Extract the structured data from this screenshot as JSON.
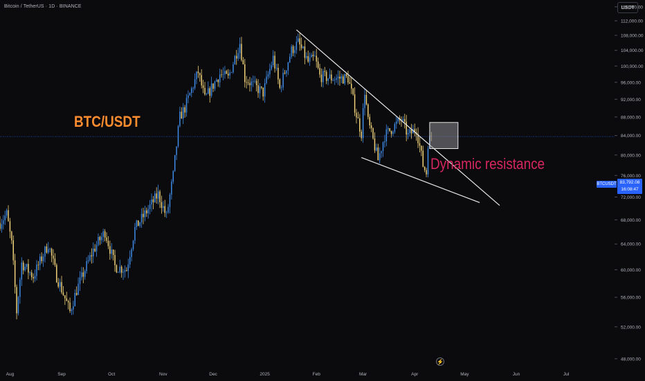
{
  "header": {
    "symbol_title": "Bitcoin / TetherUS · 1D · BINANCE",
    "currency": "USDT"
  },
  "colors": {
    "background": "#0b0b0d",
    "candle_up": "#3f8be8",
    "candle_down": "#f0d27a",
    "trendline": "#e8e8e8",
    "last_price_line": "#2962ff",
    "annotation_btc": "#ff8c2e",
    "annotation_resistance": "#d6265f"
  },
  "price_tag": {
    "symbol": "BTCUSDT",
    "price": "83,792.08",
    "countdown": "16:08:47"
  },
  "annotations": {
    "pair_label": "BTC/USDT",
    "resistance_label": "Dynamic resistance"
  },
  "icons": {
    "bottom": "lightning-bolt-icon"
  },
  "chart_data": {
    "type": "candlestick",
    "y_scale": "log",
    "ylim": [
      47000,
      118000
    ],
    "xlim": [
      "2024-07-26",
      "2025-07-30"
    ],
    "y_tick_labels": [
      "116,000.00",
      "112,000.00",
      "108,000.00",
      "104,000.00",
      "100,000.00",
      "96,000.00",
      "92,000.00",
      "88,000.00",
      "84,000.00",
      "80,000.00",
      "76,000.00",
      "72,000.00",
      "68,000.00",
      "64,000.00",
      "60,000.00",
      "56,000.00",
      "52,000.00",
      "48,000.00"
    ],
    "y_ticks": [
      116000,
      112000,
      108000,
      104000,
      100000,
      96000,
      92000,
      88000,
      84000,
      80000,
      76000,
      72000,
      68000,
      64000,
      60000,
      56000,
      52000,
      48000
    ],
    "x_ticks": [
      {
        "date": "2024-08-01",
        "label": "Aug"
      },
      {
        "date": "2024-09-01",
        "label": "Sep"
      },
      {
        "date": "2024-10-01",
        "label": "Oct"
      },
      {
        "date": "2024-11-01",
        "label": "Nov"
      },
      {
        "date": "2024-12-01",
        "label": "Dec"
      },
      {
        "date": "2025-01-01",
        "label": "2025"
      },
      {
        "date": "2025-02-01",
        "label": "Feb"
      },
      {
        "date": "2025-03-01",
        "label": "Mar"
      },
      {
        "date": "2025-04-01",
        "label": "Apr"
      },
      {
        "date": "2025-05-01",
        "label": "May"
      },
      {
        "date": "2025-06-01",
        "label": "Jun"
      },
      {
        "date": "2025-07-01",
        "label": "Jul"
      }
    ],
    "last_price": 83792.08,
    "close_anchors": [
      [
        "2024-07-26",
        67500
      ],
      [
        "2024-07-30",
        69000
      ],
      [
        "2024-08-02",
        64000
      ],
      [
        "2024-08-05",
        54000
      ],
      [
        "2024-08-08",
        61000
      ],
      [
        "2024-08-15",
        59000
      ],
      [
        "2024-08-24",
        64000
      ],
      [
        "2024-08-29",
        59000
      ],
      [
        "2024-09-06",
        54000
      ],
      [
        "2024-09-10",
        57000
      ],
      [
        "2024-09-20",
        63000
      ],
      [
        "2024-09-27",
        66000
      ],
      [
        "2024-10-03",
        60500
      ],
      [
        "2024-10-10",
        60000
      ],
      [
        "2024-10-15",
        66500
      ],
      [
        "2024-10-21",
        69000
      ],
      [
        "2024-10-29",
        72500
      ],
      [
        "2024-11-03",
        68500
      ],
      [
        "2024-11-07",
        76000
      ],
      [
        "2024-11-11",
        88000
      ],
      [
        "2024-11-14",
        90000
      ],
      [
        "2024-11-22",
        98500
      ],
      [
        "2024-11-26",
        92000
      ],
      [
        "2024-12-05",
        98000
      ],
      [
        "2024-12-10",
        97000
      ],
      [
        "2024-12-17",
        106000
      ],
      [
        "2024-12-20",
        97000
      ],
      [
        "2024-12-26",
        95000
      ],
      [
        "2024-12-31",
        93500
      ],
      [
        "2025-01-06",
        102000
      ],
      [
        "2025-01-10",
        94500
      ],
      [
        "2025-01-17",
        104000
      ],
      [
        "2025-01-21",
        106000
      ],
      [
        "2025-01-27",
        101000
      ],
      [
        "2025-01-31",
        102000
      ],
      [
        "2025-02-03",
        97500
      ],
      [
        "2025-02-10",
        97000
      ],
      [
        "2025-02-20",
        97000
      ],
      [
        "2025-02-25",
        88500
      ],
      [
        "2025-02-28",
        84500
      ],
      [
        "2025-03-02",
        94000
      ],
      [
        "2025-03-04",
        87000
      ],
      [
        "2025-03-10",
        79000
      ],
      [
        "2025-03-14",
        84000
      ],
      [
        "2025-03-24",
        87500
      ],
      [
        "2025-03-28",
        84000
      ],
      [
        "2025-04-02",
        85500
      ],
      [
        "2025-04-06",
        78000
      ],
      [
        "2025-04-08",
        76500
      ],
      [
        "2025-04-09",
        82500
      ],
      [
        "2025-04-11",
        83792
      ]
    ],
    "trendlines": [
      {
        "name": "upper",
        "from": {
          "date": "2025-01-20",
          "price": 109500
        },
        "to": {
          "date": "2025-05-22",
          "price": 70500
        }
      },
      {
        "name": "lower",
        "from": {
          "date": "2025-02-28",
          "price": 79500
        },
        "to": {
          "date": "2025-05-10",
          "price": 71000
        }
      }
    ],
    "box": {
      "from_date": "2025-04-10",
      "to_date": "2025-04-27",
      "top": 86800,
      "bottom": 81300
    }
  }
}
